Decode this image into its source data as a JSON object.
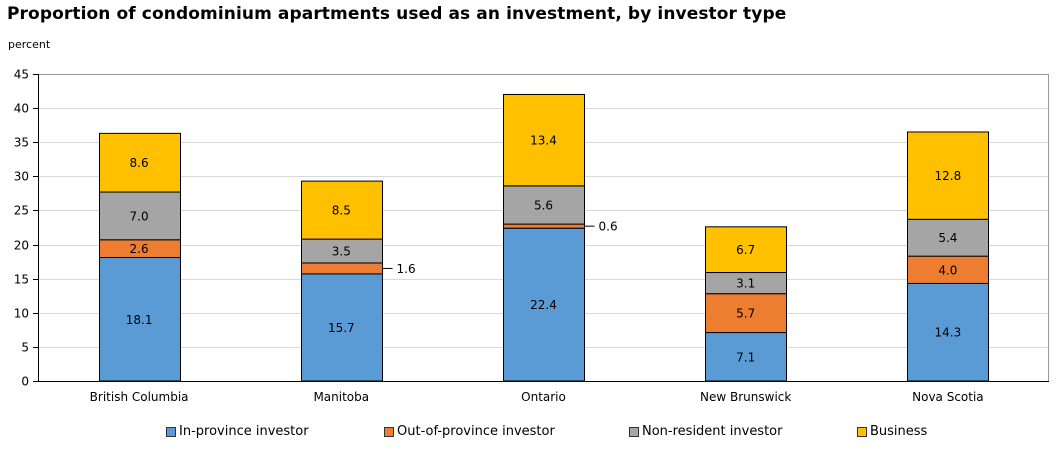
{
  "title": "Proportion of condominium  apartments used as an investment, by investor type",
  "unit_label": "percent",
  "chart_data": {
    "type": "bar",
    "stacked": true,
    "categories": [
      "British Columbia",
      "Manitoba",
      "Ontario",
      "New Brunswick",
      "Nova Scotia"
    ],
    "series": [
      {
        "name": "In-province investor",
        "color": "#5b9bd5",
        "values": [
          18.1,
          15.7,
          22.4,
          7.1,
          14.3
        ]
      },
      {
        "name": "Out-of-province investor",
        "color": "#ed7d31",
        "values": [
          2.6,
          1.6,
          0.6,
          5.7,
          4.0
        ]
      },
      {
        "name": "Non-resident investor",
        "color": "#a5a5a5",
        "values": [
          7.0,
          3.5,
          5.6,
          3.1,
          5.4
        ]
      },
      {
        "name": "Business",
        "color": "#ffc000",
        "values": [
          8.6,
          8.5,
          13.4,
          6.7,
          12.8
        ]
      }
    ],
    "data_labels": [
      [
        "18.1",
        "15.7",
        "22.4",
        "7.1",
        "14.3"
      ],
      [
        "2.6",
        "1.6",
        "0.6",
        "5.7",
        "4.0"
      ],
      [
        "7.0",
        "3.5",
        "5.6",
        "3.1",
        "5.4"
      ],
      [
        "8.6",
        "8.5",
        "13.4",
        "6.7",
        "12.8"
      ]
    ],
    "ylabel": "percent",
    "ylim": [
      0,
      45
    ],
    "yticks": [
      "0",
      "5",
      "10",
      "15",
      "20",
      "25",
      "30",
      "35",
      "40",
      "45"
    ],
    "grid": true,
    "legend_position": "bottom"
  }
}
